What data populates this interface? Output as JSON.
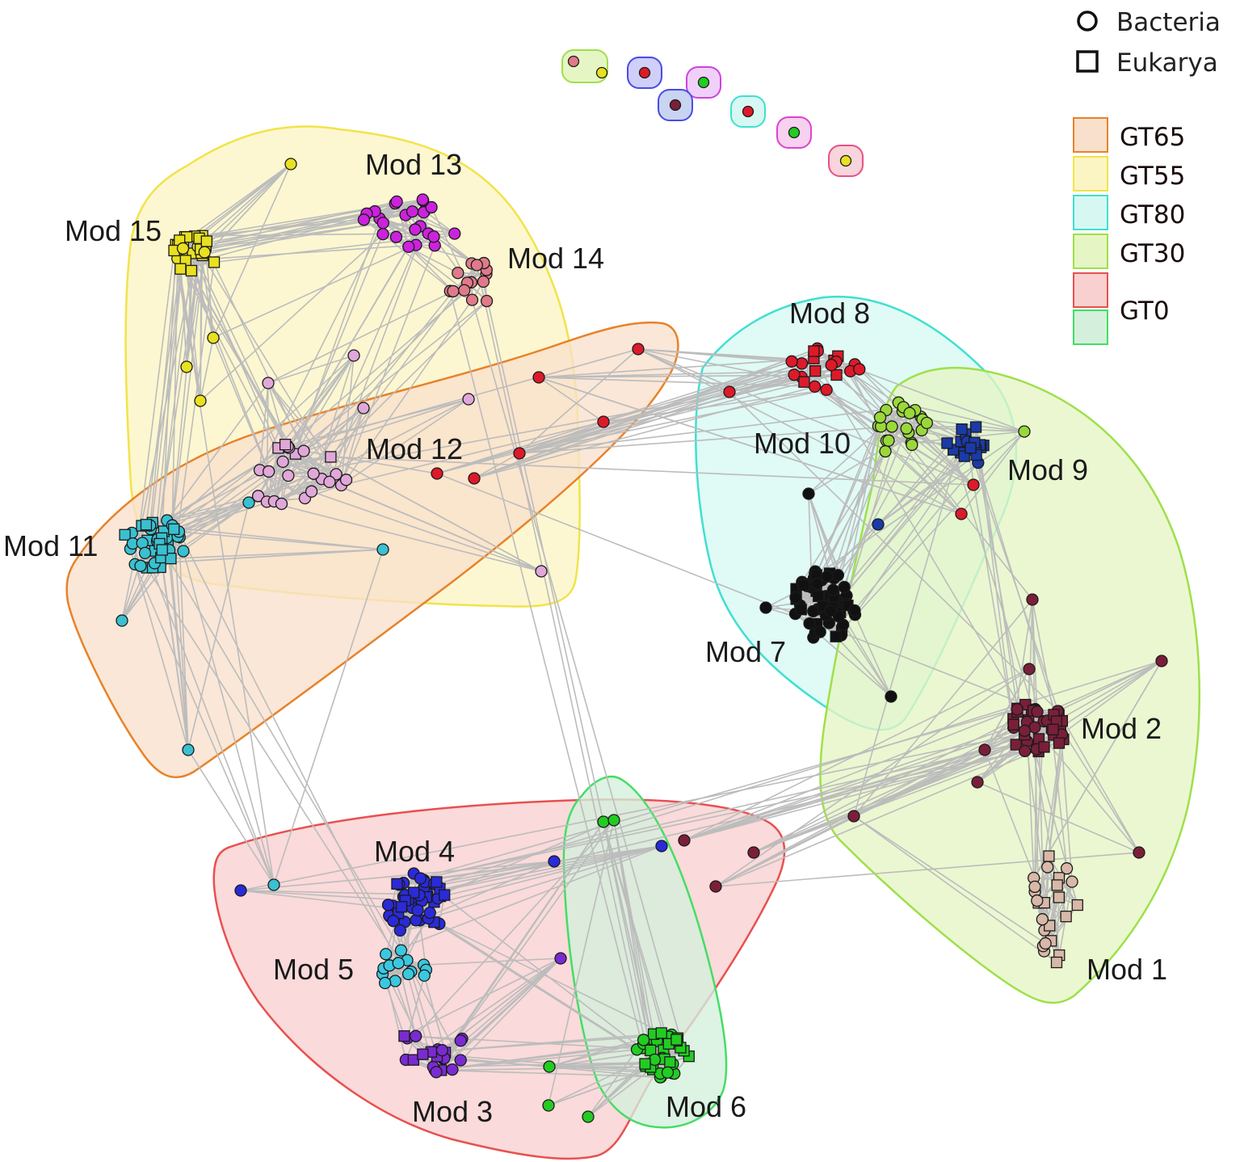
{
  "legend": {
    "shapes": [
      {
        "label": "Bacteria",
        "shape": "circle"
      },
      {
        "label": "Eukarya",
        "shape": "square"
      }
    ],
    "thresholds": [
      {
        "label": "GT65",
        "color": "#f8e0cc",
        "stroke": "#e8822a"
      },
      {
        "label": "GT55",
        "color": "#fbf5c4",
        "stroke": "#f2e34a"
      },
      {
        "label": "GT80",
        "color": "#d7f8f2",
        "stroke": "#3fe0d0"
      },
      {
        "label": "GT30",
        "color": "#e6f5c4",
        "stroke": "#9ee04a"
      },
      {
        "label": "GT0",
        "color": "#f8d0d0",
        "stroke": "#e85050"
      },
      {
        "label": "",
        "color": "#d4f0dc",
        "stroke": "#44dd66"
      }
    ]
  },
  "modules": [
    {
      "id": "mod1",
      "label": "Mod 1",
      "color": "#d8b8a8"
    },
    {
      "id": "mod2",
      "label": "Mod 2",
      "color": "#7a1f3a"
    },
    {
      "id": "mod3",
      "label": "Mod 3",
      "color": "#7a2bd0"
    },
    {
      "id": "mod4",
      "label": "Mod 4",
      "color": "#2a2ad8"
    },
    {
      "id": "mod5",
      "label": "Mod 5",
      "color": "#3ac8e0"
    },
    {
      "id": "mod6",
      "label": "Mod 6",
      "color": "#22cc22"
    },
    {
      "id": "mod7",
      "label": "Mod 7",
      "color": "#111111"
    },
    {
      "id": "mod8",
      "label": "Mod 8",
      "color": "#dd1a2a"
    },
    {
      "id": "mod9",
      "label": "Mod 9",
      "color": "#1a3aa8"
    },
    {
      "id": "mod10",
      "label": "Mod 10",
      "color": "#9ad83a"
    },
    {
      "id": "mod11",
      "label": "Mod 11",
      "color": "#3ac0d0"
    },
    {
      "id": "mod12",
      "label": "Mod 12",
      "color": "#e0a8d8"
    },
    {
      "id": "mod13",
      "label": "Mod 13",
      "color": "#cc22dd"
    },
    {
      "id": "mod14",
      "label": "Mod 14",
      "color": "#e07a8a"
    },
    {
      "id": "mod15",
      "label": "Mod 15",
      "color": "#e8e020"
    }
  ],
  "colors": {
    "edge": "#bcbcbc",
    "node_stroke": "#1a1a1a",
    "background": "#ffffff"
  }
}
